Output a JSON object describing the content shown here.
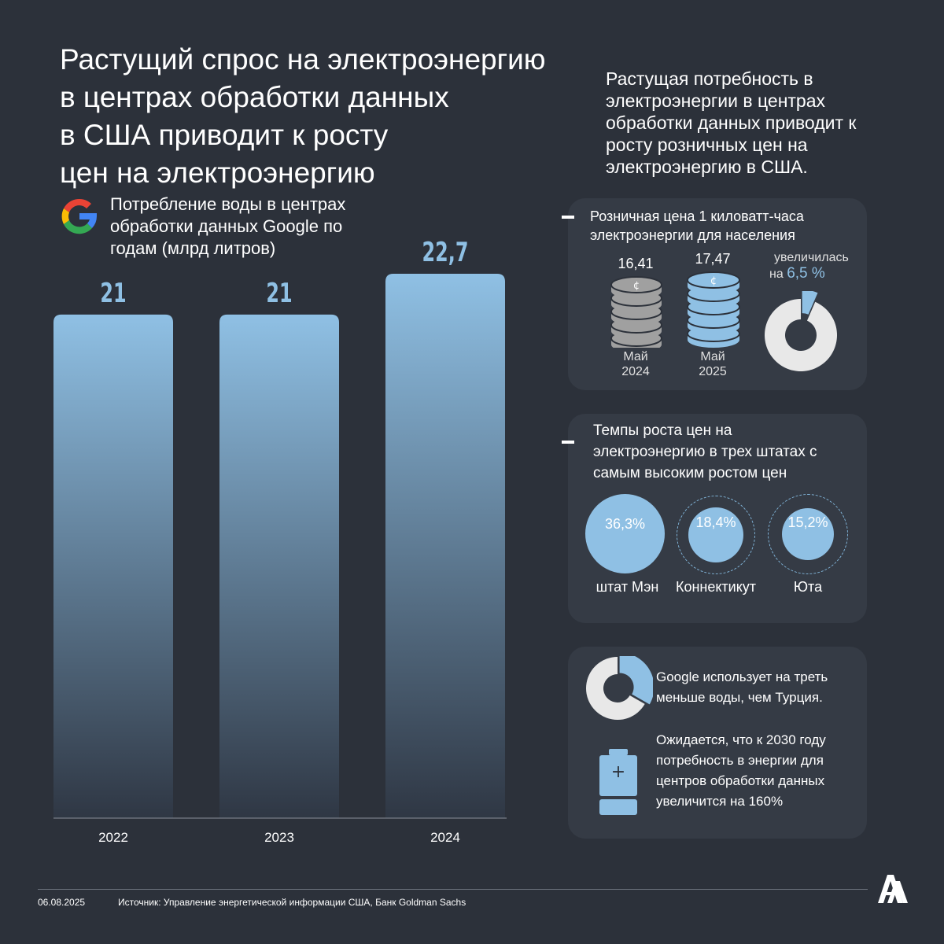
{
  "title": "Растущий спрос на электроэнергию\n в центрах обработки данных\nв США приводит к росту\nцен на электроэнергию",
  "intro": "Растущая потребность в электроэнергии в центрах обработки данных приводит к росту розничных цен на электроэнергию в США.",
  "chart_data": {
    "type": "bar",
    "title": "Потребление воды в центрах обработки данных Google по годам (млрд литров)",
    "categories": [
      "2022",
      "2023",
      "2024"
    ],
    "values": [
      21,
      21,
      22.7
    ],
    "value_labels": [
      "21",
      "21",
      "22,7"
    ],
    "ylim": [
      0,
      22.7
    ],
    "grid": false,
    "bar_color_top": "#8fc0e4",
    "bar_color_bottom": "#2f3744"
  },
  "price_panel": {
    "title": "Розничная цена 1 киловатт-часа электроэнергии для населения",
    "items": [
      {
        "value": "16,41",
        "label_line1": "Май",
        "label_line2": "2024",
        "color": "#a0a0a0",
        "icon": "coin-stack-icon"
      },
      {
        "value": "17,47",
        "label_line1": "Май",
        "label_line2": "2025",
        "color": "#8fc0e4",
        "icon": "coin-stack-icon"
      }
    ],
    "coin_symbol": "¢",
    "increase_text": "увеличилась",
    "increase_prefix": "на",
    "increase_value": "6,5 %",
    "increase_fraction": 0.065
  },
  "states_panel": {
    "title": "Темпы роста цен на электроэнергию в трех штатах с самым высоким ростом цен",
    "states": [
      {
        "name": "штат Мэн",
        "value": "36,3%"
      },
      {
        "name": "Коннектикут",
        "value": "18,4%"
      },
      {
        "name": "Юта",
        "value": "15,2%"
      }
    ]
  },
  "facts_panel": {
    "fact1": "Google использует на треть меньше воды, чем Турция.",
    "fact1_fraction": 0.333,
    "fact2": "Ожидается, что к 2030 году потребность в энергии для центров обработки данных увеличится на 160%"
  },
  "footer": {
    "date": "06.08.2025",
    "source": "Источник: Управление энергетической информации США, Банк Goldman Sachs"
  },
  "colors": {
    "background": "#2c313a",
    "panel": "#353b45",
    "accent": "#8fc0e4",
    "gray": "#a0a0a0"
  }
}
